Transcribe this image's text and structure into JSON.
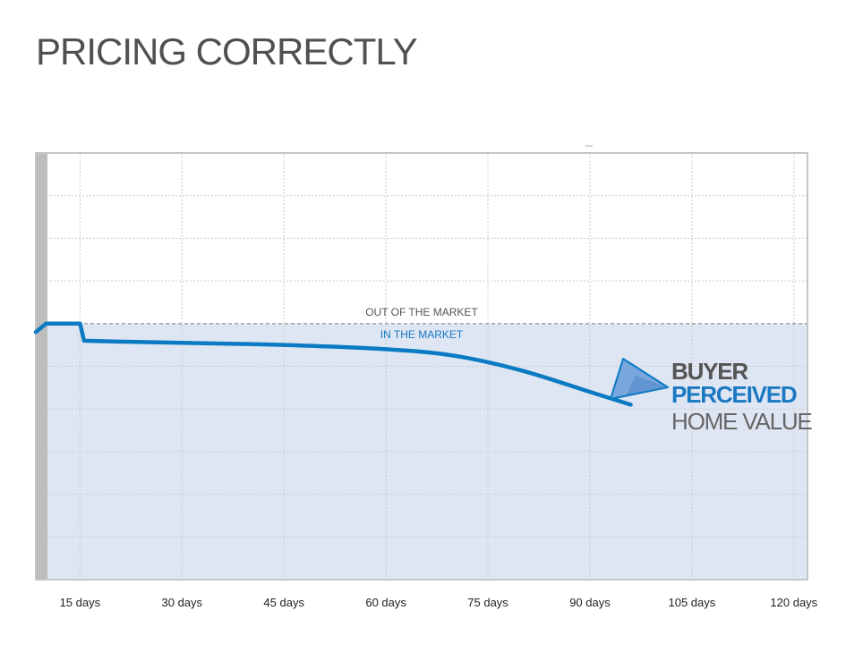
{
  "title": "PRICING CORRECTLY",
  "colors": {
    "title": "#505050",
    "curve": "#0a7ac2",
    "below_fill": "#dfe6f3",
    "grid": "#c9c9c9",
    "frame": "#c6c6c6",
    "left_bar": "#bdbdbd",
    "out_label": "#555555",
    "in_label": "#1a78c2",
    "buyer": "#555555",
    "perceived": "#1a78c2",
    "home_value": "#666666",
    "arrow_fill": "#79a6dc"
  },
  "chart_data": {
    "type": "line",
    "title": "",
    "xlabel": "",
    "ylabel": "",
    "x_tick_labels": [
      "15 days",
      "30 days",
      "45 days",
      "60 days",
      "75 days",
      "90 days",
      "105 days",
      "120 days"
    ],
    "x_tick_values": [
      15,
      30,
      45,
      60,
      75,
      90,
      105,
      120
    ],
    "xlim": [
      8.5,
      122
    ],
    "ylim": [
      0,
      10
    ],
    "horizontal_gridlines": 9,
    "threshold": {
      "y": 6,
      "label_above": "OUT OF THE MARKET",
      "label_below": "IN THE MARKET"
    },
    "series": [
      {
        "x": [
          8.5,
          10,
          15,
          15.6,
          20,
          30,
          45,
          60,
          70,
          80,
          90,
          96
        ],
        "y": [
          5.8,
          6.0,
          6.0,
          5.6,
          5.58,
          5.55,
          5.5,
          5.4,
          5.25,
          4.9,
          4.4,
          4.1
        ]
      }
    ],
    "annotation": {
      "line1": "BUYER",
      "line2": "PERCEIVED",
      "line3": "HOME VALUE"
    }
  }
}
